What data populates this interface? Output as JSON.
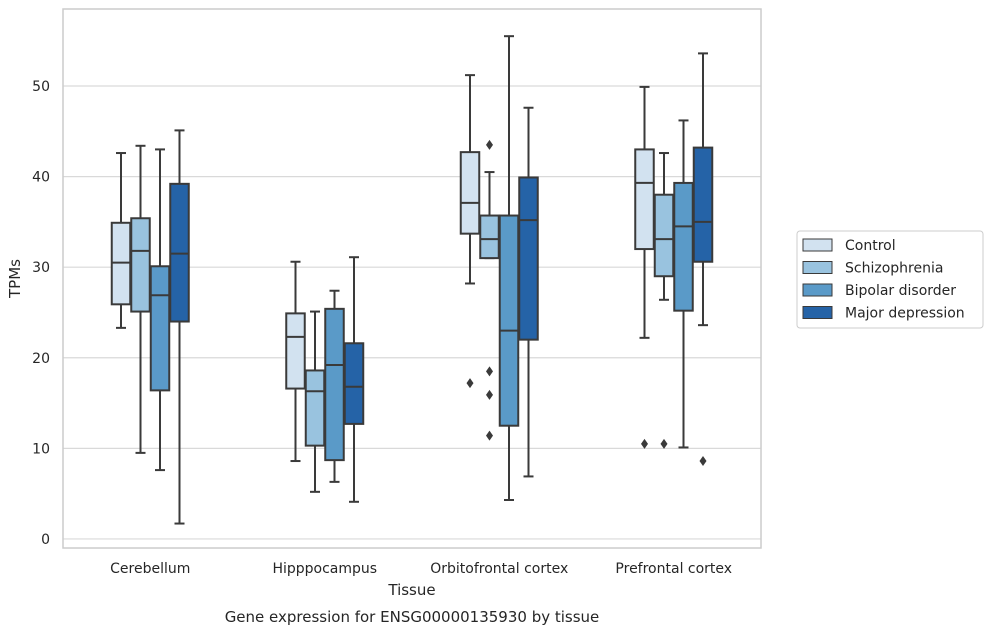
{
  "chart_data": {
    "type": "boxplot",
    "xlabel": "Tissue",
    "ylabel": "TPMs",
    "caption": "Gene expression for ENSG00000135930 by tissue",
    "ylim": [
      -1,
      58.5
    ],
    "yticks": [
      0,
      10,
      20,
      30,
      40,
      50
    ],
    "grid": "horizontal",
    "legend_position": "right",
    "categories": [
      "Cerebellum",
      "Hipppocampus",
      "Orbitofrontal cortex",
      "Prefrontal cortex"
    ],
    "series": [
      {
        "name": "Control",
        "color": "#d2e2f0",
        "boxes": [
          {
            "whislo": 23.3,
            "q1": 25.9,
            "med": 30.5,
            "q3": 34.9,
            "whishi": 42.6,
            "fliers": []
          },
          {
            "whislo": 8.6,
            "q1": 16.6,
            "med": 22.3,
            "q3": 24.9,
            "whishi": 30.6,
            "fliers": []
          },
          {
            "whislo": 28.2,
            "q1": 33.7,
            "med": 37.1,
            "q3": 42.7,
            "whishi": 51.2,
            "fliers": [
              17.2
            ]
          },
          {
            "whislo": 22.2,
            "q1": 32.0,
            "med": 39.3,
            "q3": 43.0,
            "whishi": 49.9,
            "fliers": [
              10.5
            ]
          }
        ]
      },
      {
        "name": "Schizophrenia",
        "color": "#99c3df",
        "boxes": [
          {
            "whislo": 9.5,
            "q1": 25.1,
            "med": 31.8,
            "q3": 35.4,
            "whishi": 43.4,
            "fliers": []
          },
          {
            "whislo": 5.2,
            "q1": 10.3,
            "med": 16.3,
            "q3": 18.6,
            "whishi": 25.1,
            "fliers": []
          },
          {
            "whislo": 31.0,
            "q1": 31.0,
            "med": 33.1,
            "q3": 35.7,
            "whishi": 40.5,
            "fliers": [
              43.5,
              18.5,
              15.9,
              11.4
            ]
          },
          {
            "whislo": 26.4,
            "q1": 29.0,
            "med": 33.1,
            "q3": 38.0,
            "whishi": 42.6,
            "fliers": [
              10.5
            ]
          }
        ]
      },
      {
        "name": "Bipolar disorder",
        "color": "#5a9ac8",
        "boxes": [
          {
            "whislo": 7.6,
            "q1": 16.4,
            "med": 26.9,
            "q3": 30.1,
            "whishi": 43.0,
            "fliers": []
          },
          {
            "whislo": 6.3,
            "q1": 8.7,
            "med": 19.2,
            "q3": 25.4,
            "whishi": 27.4,
            "fliers": []
          },
          {
            "whislo": 4.3,
            "q1": 12.5,
            "med": 23.0,
            "q3": 35.7,
            "whishi": 55.5,
            "fliers": []
          },
          {
            "whislo": 10.1,
            "q1": 25.2,
            "med": 34.5,
            "q3": 39.3,
            "whishi": 46.2,
            "fliers": []
          }
        ]
      },
      {
        "name": "Major depression",
        "color": "#2563a7",
        "boxes": [
          {
            "whislo": 1.7,
            "q1": 24.0,
            "med": 31.5,
            "q3": 39.2,
            "whishi": 45.1,
            "fliers": []
          },
          {
            "whislo": 4.1,
            "q1": 12.7,
            "med": 16.8,
            "q3": 21.6,
            "whishi": 31.1,
            "fliers": []
          },
          {
            "whislo": 6.9,
            "q1": 22.0,
            "med": 35.2,
            "q3": 39.9,
            "whishi": 47.6,
            "fliers": []
          },
          {
            "whislo": 23.6,
            "q1": 30.6,
            "med": 35.0,
            "q3": 43.2,
            "whishi": 53.6,
            "fliers": [
              8.6
            ]
          }
        ]
      }
    ]
  }
}
